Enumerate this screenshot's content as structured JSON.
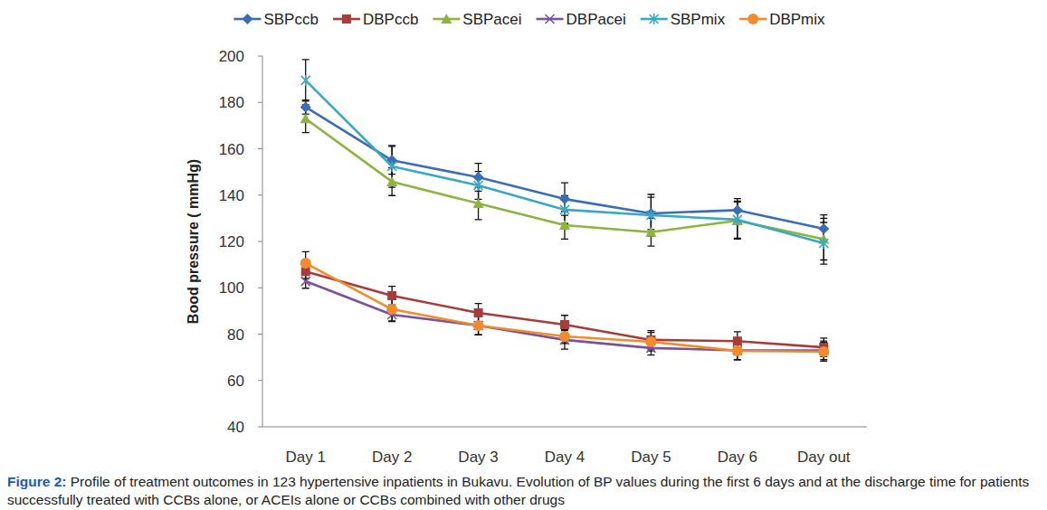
{
  "chart_data": {
    "type": "line",
    "title": "Figure 2:",
    "subtitle": "Profile of treatment outcomes in 123 hypertensive inpatients in Bukavu. Evolution of BP values during the first 6 days and at the discharge time for patients successfully treated with CCBs alone, or ACEIs alone or CCBs combined with other drugs",
    "y_label": "Bood pressure ( mmHg)",
    "categories": [
      "Day 1",
      "Day 2",
      "Day 3",
      "Day 4",
      "Day 5",
      "Day 6",
      "Day out"
    ],
    "ylim": [
      40,
      200
    ],
    "yticks": [
      40,
      60,
      80,
      100,
      120,
      140,
      160,
      180,
      200
    ],
    "grid": false,
    "legend": "top",
    "series": [
      {
        "name": "SBPccb",
        "color": "#3b6db4",
        "marker": "diamond",
        "line_style": "solid",
        "values": [
          178,
          155,
          147.7,
          138.3,
          132.1,
          133.5,
          125.5
        ],
        "errors": [
          3,
          6,
          6,
          7,
          7,
          5,
          6
        ]
      },
      {
        "name": "DBPccb",
        "color": "#a63d3b",
        "marker": "square",
        "line_style": "solid",
        "values": [
          107,
          96.6,
          89.2,
          84.1,
          77.5,
          77,
          74.3
        ],
        "errors": [
          3,
          4,
          4,
          4,
          4,
          4,
          4
        ]
      },
      {
        "name": "SBPacei",
        "color": "#8cb43e",
        "marker": "triangle",
        "line_style": "solid",
        "values": [
          173,
          145.8,
          136.4,
          127,
          124,
          129,
          121
        ],
        "errors": [
          6,
          6,
          7,
          6,
          6,
          8,
          9
        ]
      },
      {
        "name": "DBPacei",
        "color": "#7a519b",
        "marker": "x",
        "line_style": "solid",
        "values": [
          102.8,
          88.4,
          83.7,
          77.5,
          74,
          73,
          73
        ],
        "errors": [
          3,
          3,
          4,
          4,
          3,
          4,
          4
        ]
      },
      {
        "name": "SBPmix",
        "color": "#3aa8c2",
        "marker": "star",
        "line_style": "solid",
        "values": [
          189.5,
          152.4,
          144.2,
          133.7,
          131.3,
          129.4,
          119.2
        ],
        "errors": [
          9,
          9,
          6,
          6,
          9,
          8,
          9
        ]
      },
      {
        "name": "DBPmix",
        "color": "#f18b2c",
        "marker": "circle",
        "line_style": "solid",
        "values": [
          110.6,
          90.7,
          83.7,
          79,
          76.7,
          72.8,
          72.4
        ],
        "errors": [
          5,
          5,
          4,
          3,
          4,
          4,
          4
        ]
      }
    ]
  }
}
